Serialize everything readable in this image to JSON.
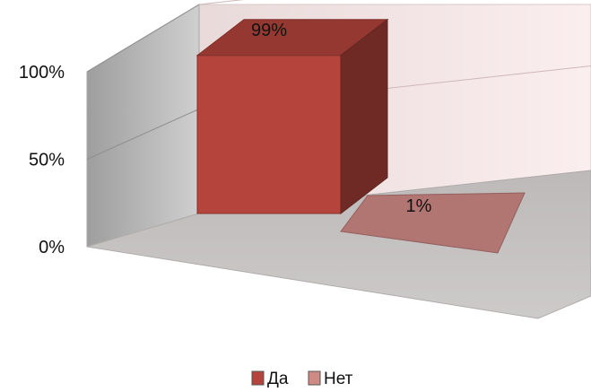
{
  "chart_data": {
    "type": "bar",
    "view": "3d",
    "categories": [
      "Да",
      "Нет"
    ],
    "values": [
      99,
      1
    ],
    "data_labels": [
      "99%",
      "1%"
    ],
    "yticks": [
      "0%",
      "50%",
      "100%"
    ],
    "ylim": [
      0,
      100
    ],
    "grid": true,
    "legend_position": "bottom",
    "colors": {
      "Да": "#b5443c",
      "Нет": "#d08a86",
      "back_wall": "#f4e2e2",
      "side_wall": "#b9b9b9",
      "floor": "#c7c4c4"
    }
  }
}
